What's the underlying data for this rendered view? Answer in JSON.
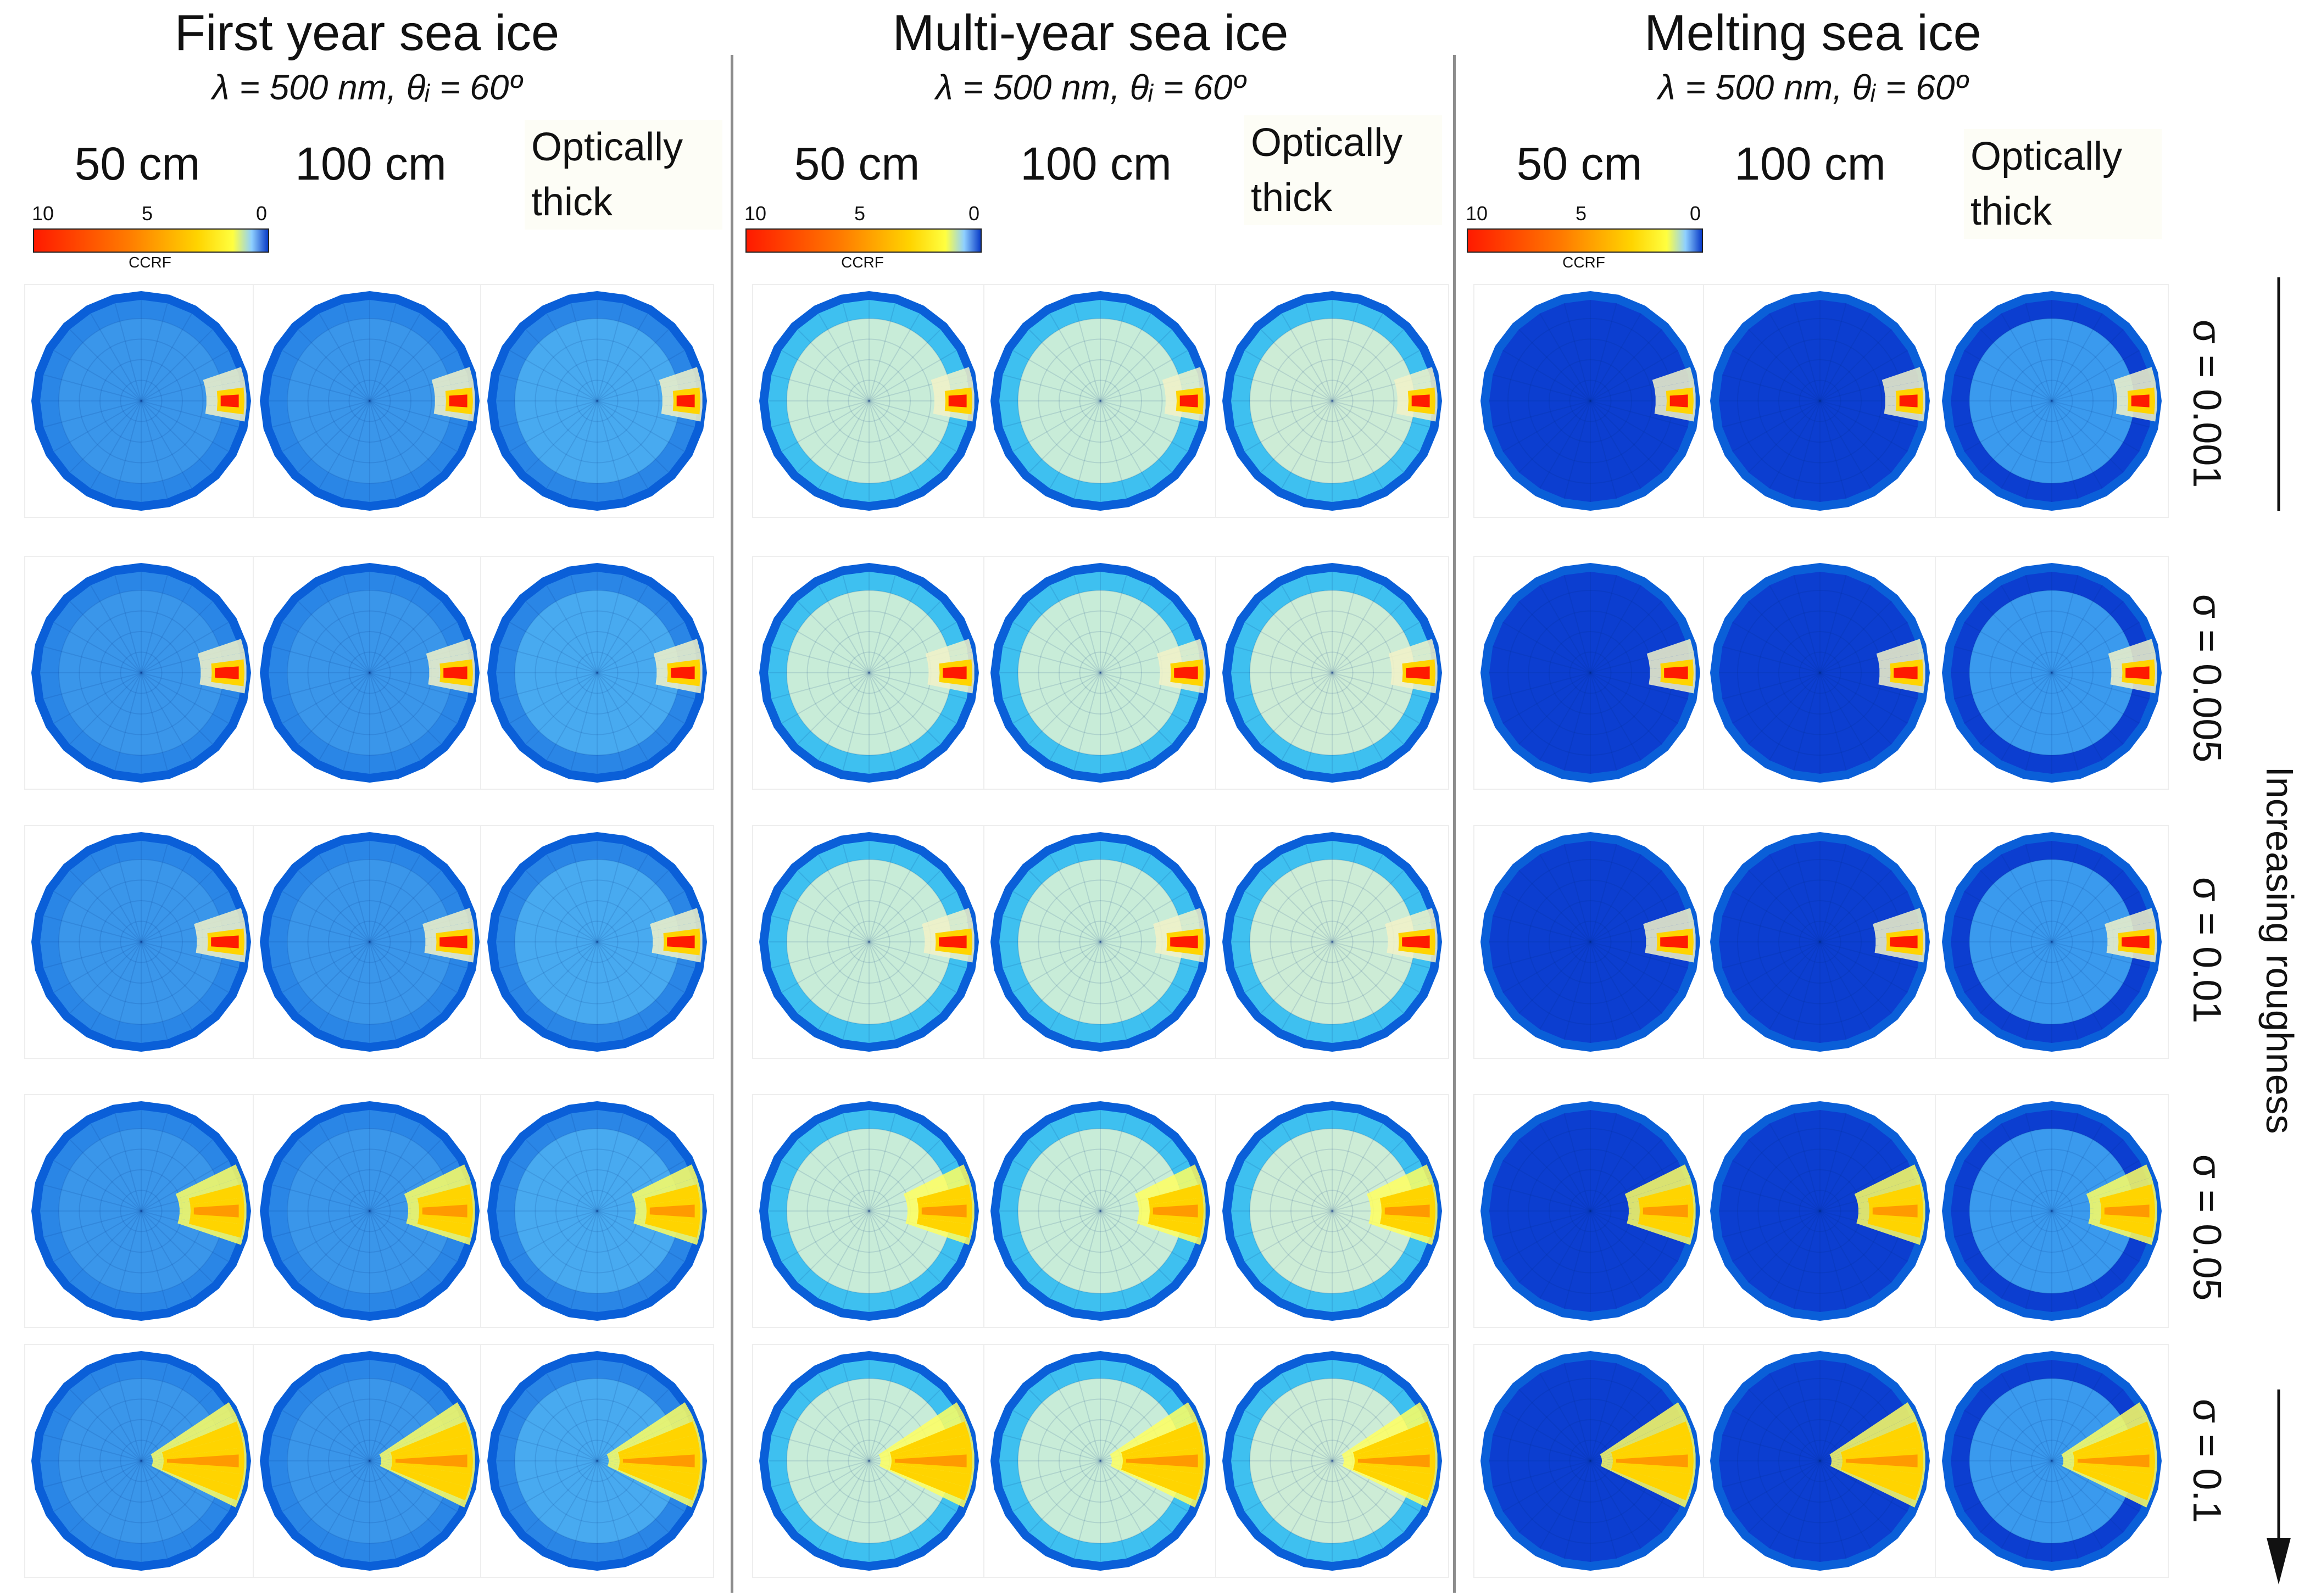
{
  "sections": [
    {
      "title": "First year sea ice",
      "subtitle": "λ = 500 nm, θᵢ = 60º",
      "columns": [
        "50 cm",
        "100 cm"
      ],
      "thick_label": "Optically thick",
      "colorbar": {
        "ticks": [
          "10",
          "5",
          "0"
        ],
        "label": "CCRF"
      }
    },
    {
      "title": "Multi-year sea ice",
      "subtitle": "λ = 500 nm, θᵢ = 60º",
      "columns": [
        "50 cm",
        "100 cm"
      ],
      "thick_label": "Optically thick",
      "colorbar": {
        "ticks": [
          "10",
          "5",
          "0"
        ],
        "label": "CCRF"
      }
    },
    {
      "title": "Melting sea ice",
      "subtitle": "λ = 500 nm, θᵢ = 60º",
      "columns": [
        "50 cm",
        "100 cm"
      ],
      "thick_label": "Optically thick",
      "colorbar": {
        "ticks": [
          "10",
          "5",
          "0"
        ],
        "label": "CCRF"
      }
    }
  ],
  "rows": [
    "σ = 0.001",
    "σ = 0.005",
    "σ = 0.01",
    "σ = 0.05",
    "σ = 0.1"
  ],
  "axis_label": "Increasing roughness",
  "colormap": {
    "scale_max": 10,
    "scale_min": 0,
    "stops": [
      "#ff1a00",
      "#ff7a00",
      "#ffd400",
      "#ffff40",
      "#8fd0ff",
      "#0a3cc8"
    ]
  },
  "section_base_colors": {
    "first_year": {
      "rim": "#0a5fd8",
      "outer": "#2a86e6",
      "inner": "#3a96ea"
    },
    "multi_year": {
      "rim": "#0a5fd8",
      "outer": "#3ec0f0",
      "inner": "#c8ecd8"
    },
    "melting": {
      "rim": "#0a5fd8",
      "outer": "#0c3ed0",
      "inner": "#0c3ed0"
    }
  },
  "thick_inner": {
    "first_year": "#48aaf0",
    "multi_year": "#cdecd6",
    "melting": "#3a9aee"
  },
  "peak_spread": [
    0.3,
    0.45,
    0.55,
    1.0,
    1.7
  ]
}
